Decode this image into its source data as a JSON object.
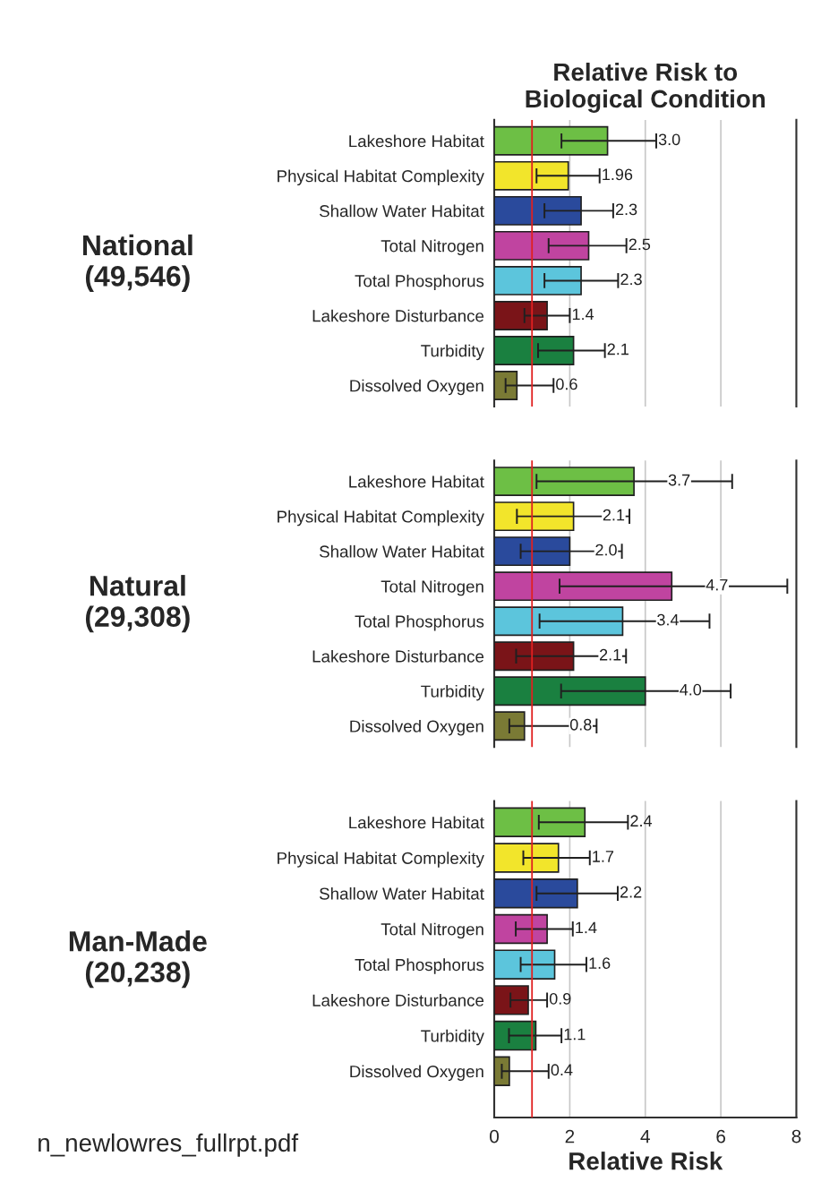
{
  "chart_data": [
    {
      "type": "bar",
      "orientation": "horizontal",
      "title": "Relative Risk to\nBiological Condition",
      "ylabel": "National\n(49,546)",
      "categories": [
        "Lakeshore Habitat",
        "Physical Habitat Complexity",
        "Shallow Water Habitat",
        "Total Nitrogen",
        "Total Phosphorus",
        "Lakeshore Disturbance",
        "Turbidity",
        "Dissolved Oxygen"
      ],
      "values": [
        3.0,
        1.96,
        2.3,
        2.5,
        2.3,
        1.4,
        2.1,
        0.6
      ],
      "value_labels": [
        "3.0",
        "1.96",
        "2.3",
        "2.5",
        "2.3",
        "1.4",
        "2.1",
        "0.6"
      ],
      "errors": [
        [
          1.78,
          4.29
        ],
        [
          1.12,
          2.79
        ],
        [
          1.33,
          3.15
        ],
        [
          1.44,
          3.5
        ],
        [
          1.33,
          3.28
        ],
        [
          0.8,
          2.0
        ],
        [
          1.16,
          2.93
        ],
        [
          0.3,
          1.57
        ]
      ],
      "colors": [
        "#6dbf45",
        "#f2e52b",
        "#2a4a9c",
        "#c044a0",
        "#5cc5dc",
        "#7a1418",
        "#1a8040",
        "#7a7a35"
      ],
      "xlim": [
        0,
        8
      ],
      "xticks": [
        0,
        2,
        4,
        6,
        8
      ],
      "tick_labels": "y",
      "grid": "x",
      "ref_lines": [
        {
          "axis": "x",
          "value": 1,
          "color": "#e02020"
        }
      ]
    },
    {
      "type": "bar",
      "orientation": "horizontal",
      "ylabel": "Natural\n(29,308)",
      "categories": [
        "Lakeshore Habitat",
        "Physical Habitat Complexity",
        "Shallow Water Habitat",
        "Total Nitrogen",
        "Total Phosphorus",
        "Lakeshore Disturbance",
        "Turbidity",
        "Dissolved Oxygen"
      ],
      "values": [
        3.7,
        2.1,
        2.0,
        4.7,
        3.4,
        2.1,
        4.0,
        0.8
      ],
      "value_labels": [
        "3.7",
        "2.1",
        "2.0",
        "4.7",
        "3.4",
        "2.1",
        "4.0",
        "0.8"
      ],
      "errors": [
        [
          1.12,
          6.3
        ],
        [
          0.6,
          3.58
        ],
        [
          0.7,
          3.38
        ],
        [
          1.73,
          7.76
        ],
        [
          1.2,
          5.7
        ],
        [
          0.58,
          3.49
        ],
        [
          1.77,
          6.26
        ],
        [
          0.4,
          2.71
        ]
      ],
      "colors": [
        "#6dbf45",
        "#f2e52b",
        "#2a4a9c",
        "#c044a0",
        "#5cc5dc",
        "#7a1418",
        "#1a8040",
        "#7a7a35"
      ],
      "xlim": [
        0,
        8
      ],
      "xticks": [
        0,
        2,
        4,
        6,
        8
      ],
      "tick_labels": "y",
      "grid": "x",
      "ref_lines": [
        {
          "axis": "x",
          "value": 1,
          "color": "#e02020"
        }
      ]
    },
    {
      "type": "bar",
      "orientation": "horizontal",
      "ylabel": "Man-Made\n(20,238)",
      "xlabel": "Relative Risk",
      "categories": [
        "Lakeshore Habitat",
        "Physical Habitat Complexity",
        "Shallow Water Habitat",
        "Total Nitrogen",
        "Total Phosphorus",
        "Lakeshore Disturbance",
        "Turbidity",
        "Dissolved Oxygen"
      ],
      "values": [
        2.4,
        1.7,
        2.2,
        1.4,
        1.6,
        0.9,
        1.1,
        0.4
      ],
      "value_labels": [
        "2.4",
        "1.7",
        "2.2",
        "1.4",
        "1.6",
        "0.9",
        "1.1",
        "0.4"
      ],
      "errors": [
        [
          1.18,
          3.54
        ],
        [
          0.77,
          2.53
        ],
        [
          1.12,
          3.27
        ],
        [
          0.57,
          2.08
        ],
        [
          0.7,
          2.44
        ],
        [
          0.43,
          1.4
        ],
        [
          0.39,
          1.78
        ],
        [
          0.2,
          1.44
        ]
      ],
      "colors": [
        "#6dbf45",
        "#f2e52b",
        "#2a4a9c",
        "#c044a0",
        "#5cc5dc",
        "#7a1418",
        "#1a8040",
        "#7a7a35"
      ],
      "xlim": [
        0,
        8
      ],
      "xticks": [
        0,
        2,
        4,
        6,
        8
      ],
      "grid": "x",
      "ref_lines": [
        {
          "axis": "x",
          "value": 1,
          "color": "#e02020"
        }
      ],
      "annotations": [
        "n_newlowres_fullrpt.pdf"
      ]
    }
  ]
}
